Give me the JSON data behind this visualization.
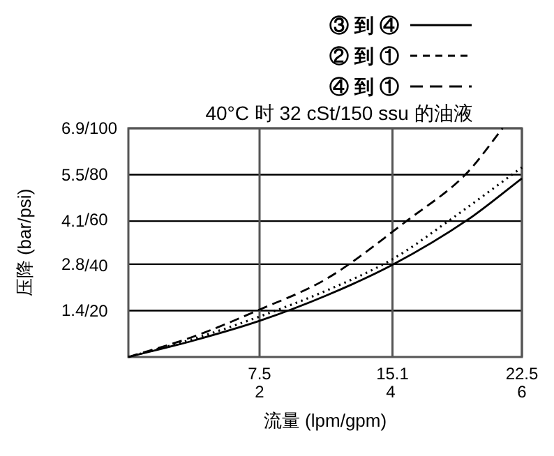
{
  "chart_data": {
    "type": "line",
    "title": "40°C 时 32 cSt/150 ssu 的油液",
    "xlabel": "流量 (lpm/gpm)",
    "ylabel": "压降 (bar/psi)",
    "xlim": [
      0,
      22.5
    ],
    "ylim": [
      0,
      6.9
    ],
    "x2lim": [
      0,
      6
    ],
    "y2lim": [
      0,
      100
    ],
    "xticks": [
      7.5,
      15.1,
      22.5
    ],
    "x2ticks": [
      2,
      4,
      6
    ],
    "yticks": [
      1.4,
      2.8,
      4.1,
      5.5,
      6.9
    ],
    "y2ticks": [
      {
        "value": 20,
        "label": "/20"
      },
      {
        "value": 40,
        "label": "/40"
      },
      {
        "value": 60,
        "label": "/60"
      },
      {
        "value": 80,
        "label": "/80"
      },
      {
        "value": 100,
        "label": "/100"
      }
    ],
    "grid": true,
    "legend": "top",
    "marker": "none",
    "series": [
      {
        "name": "③ 到 ④",
        "color": "#000000",
        "line_style": "solid",
        "x": [
          0,
          3.75,
          7.5,
          11.3,
          15.1,
          19.4,
          22.5
        ],
        "values": [
          0,
          0.5,
          1.09,
          1.85,
          2.78,
          4.14,
          5.39
        ]
      },
      {
        "name": "② 到 ①",
        "color": "#000000",
        "line_style": "dotted",
        "x": [
          0,
          3.75,
          7.5,
          11.3,
          15.1,
          18.4,
          22.5
        ],
        "values": [
          0,
          0.55,
          1.22,
          2.0,
          2.95,
          4.14,
          5.72
        ]
      },
      {
        "name": "④ 到 ①",
        "color": "#000000",
        "line_style": "dashed",
        "x": [
          0,
          3.75,
          7.5,
          11.3,
          16.0,
          19.3,
          21.4
        ],
        "values": [
          0,
          0.62,
          1.43,
          2.35,
          4.14,
          5.52,
          6.9
        ]
      }
    ]
  }
}
